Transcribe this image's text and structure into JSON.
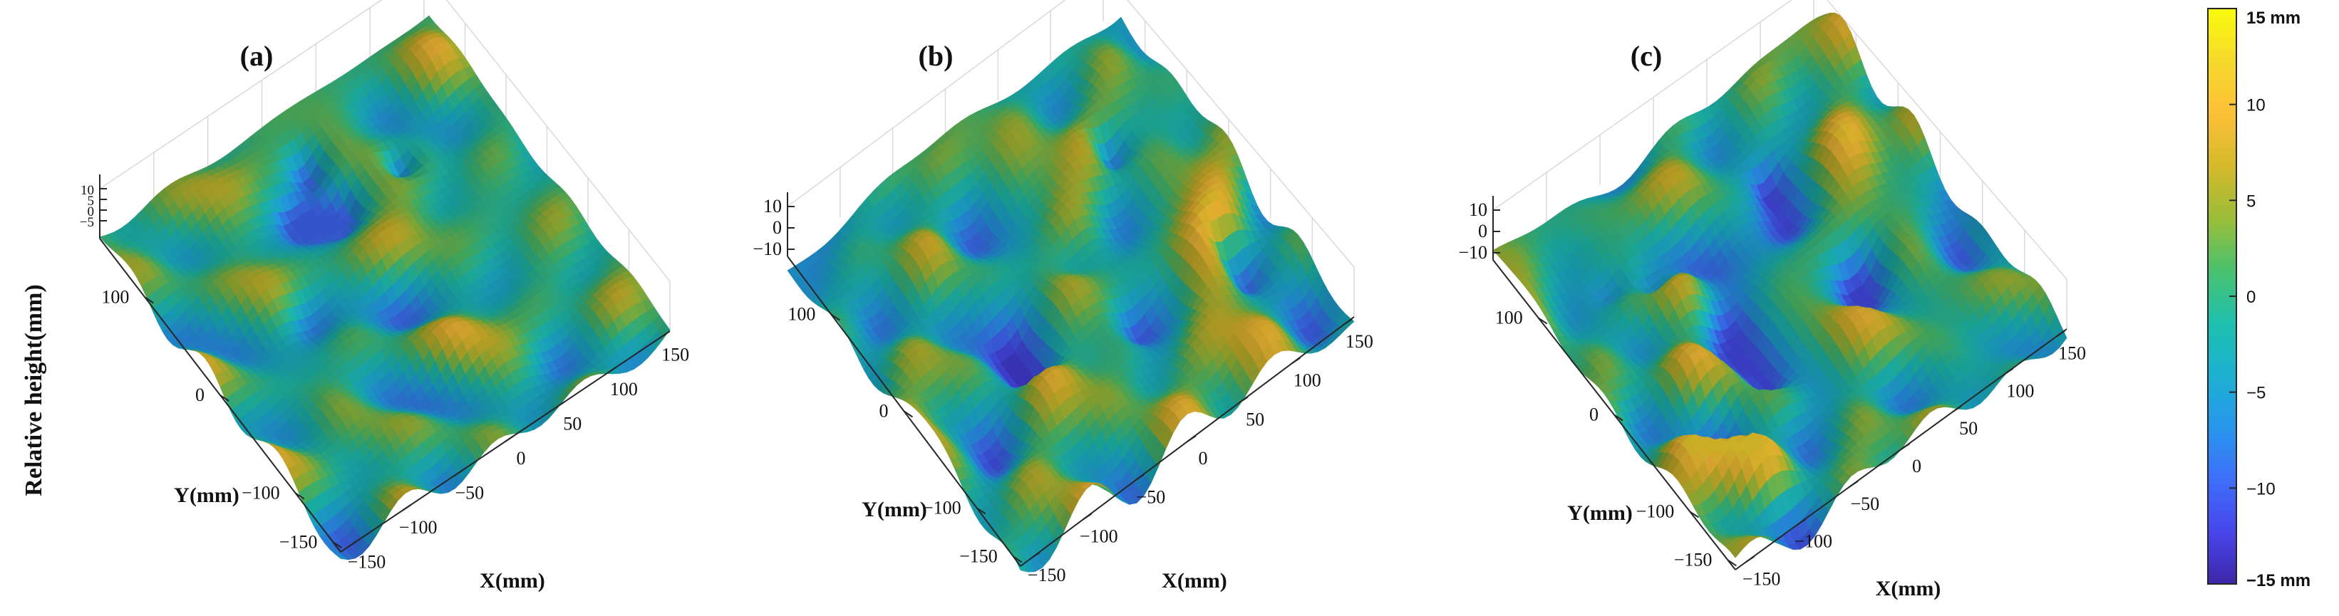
{
  "chart_data": [
    {
      "type": "surface",
      "panel_label": "(a)",
      "xlabel": "X(mm)",
      "ylabel": "Y(mm)",
      "zlabel": "Relative height(mm)",
      "xlim": [
        -160,
        160
      ],
      "ylim": [
        -160,
        160
      ],
      "zlim": [
        -10,
        10
      ],
      "x_ticks": [
        "−150",
        "−100",
        "−50",
        "0",
        "50",
        "100",
        "150"
      ],
      "y_ticks": [
        "−150",
        "−100",
        "0",
        "100"
      ],
      "z_ticks": [
        "10",
        "5",
        "0",
        "−5"
      ],
      "surface_amplitude": 10,
      "colormap": "parula",
      "grid": true
    },
    {
      "type": "surface",
      "panel_label": "(b)",
      "xlabel": "X(mm)",
      "ylabel": "Y(mm)",
      "xlim": [
        -160,
        160
      ],
      "ylim": [
        -160,
        160
      ],
      "zlim": [
        -10,
        10
      ],
      "x_ticks": [
        "−150",
        "−100",
        "−50",
        "0",
        "50",
        "100",
        "150"
      ],
      "y_ticks": [
        "−150",
        "−100",
        "0",
        "100"
      ],
      "z_ticks": [
        "10",
        "0",
        "−10"
      ],
      "surface_amplitude": 13,
      "colormap": "parula",
      "grid": true
    },
    {
      "type": "surface",
      "panel_label": "(c)",
      "xlabel": "X(mm)",
      "ylabel": "Y(mm)",
      "xlim": [
        -160,
        160
      ],
      "ylim": [
        -160,
        160
      ],
      "zlim": [
        -10,
        10
      ],
      "x_ticks": [
        "−150",
        "−100",
        "−50",
        "0",
        "50",
        "100",
        "150"
      ],
      "y_ticks": [
        "−150",
        "−100",
        "0",
        "100"
      ],
      "z_ticks": [
        "10",
        "0",
        "−10"
      ],
      "surface_amplitude": 12,
      "colormap": "parula",
      "grid": true
    }
  ],
  "colorbar": {
    "range": [
      -15,
      15
    ],
    "ticks": [
      "15 mm",
      "10",
      "5",
      "0",
      "−5",
      "−10",
      "−15 mm"
    ],
    "tick_values": [
      15,
      10,
      5,
      0,
      -5,
      -10,
      -15
    ],
    "colormap": "parula",
    "colors": [
      "#3e26a8",
      "#4746eb",
      "#3e6ff9",
      "#2797eb",
      "#1cb1d1",
      "#1fc0ae",
      "#4ac16e",
      "#9bbd39",
      "#d5b92a",
      "#fdc038",
      "#f6d92b",
      "#f9fb0e"
    ]
  }
}
